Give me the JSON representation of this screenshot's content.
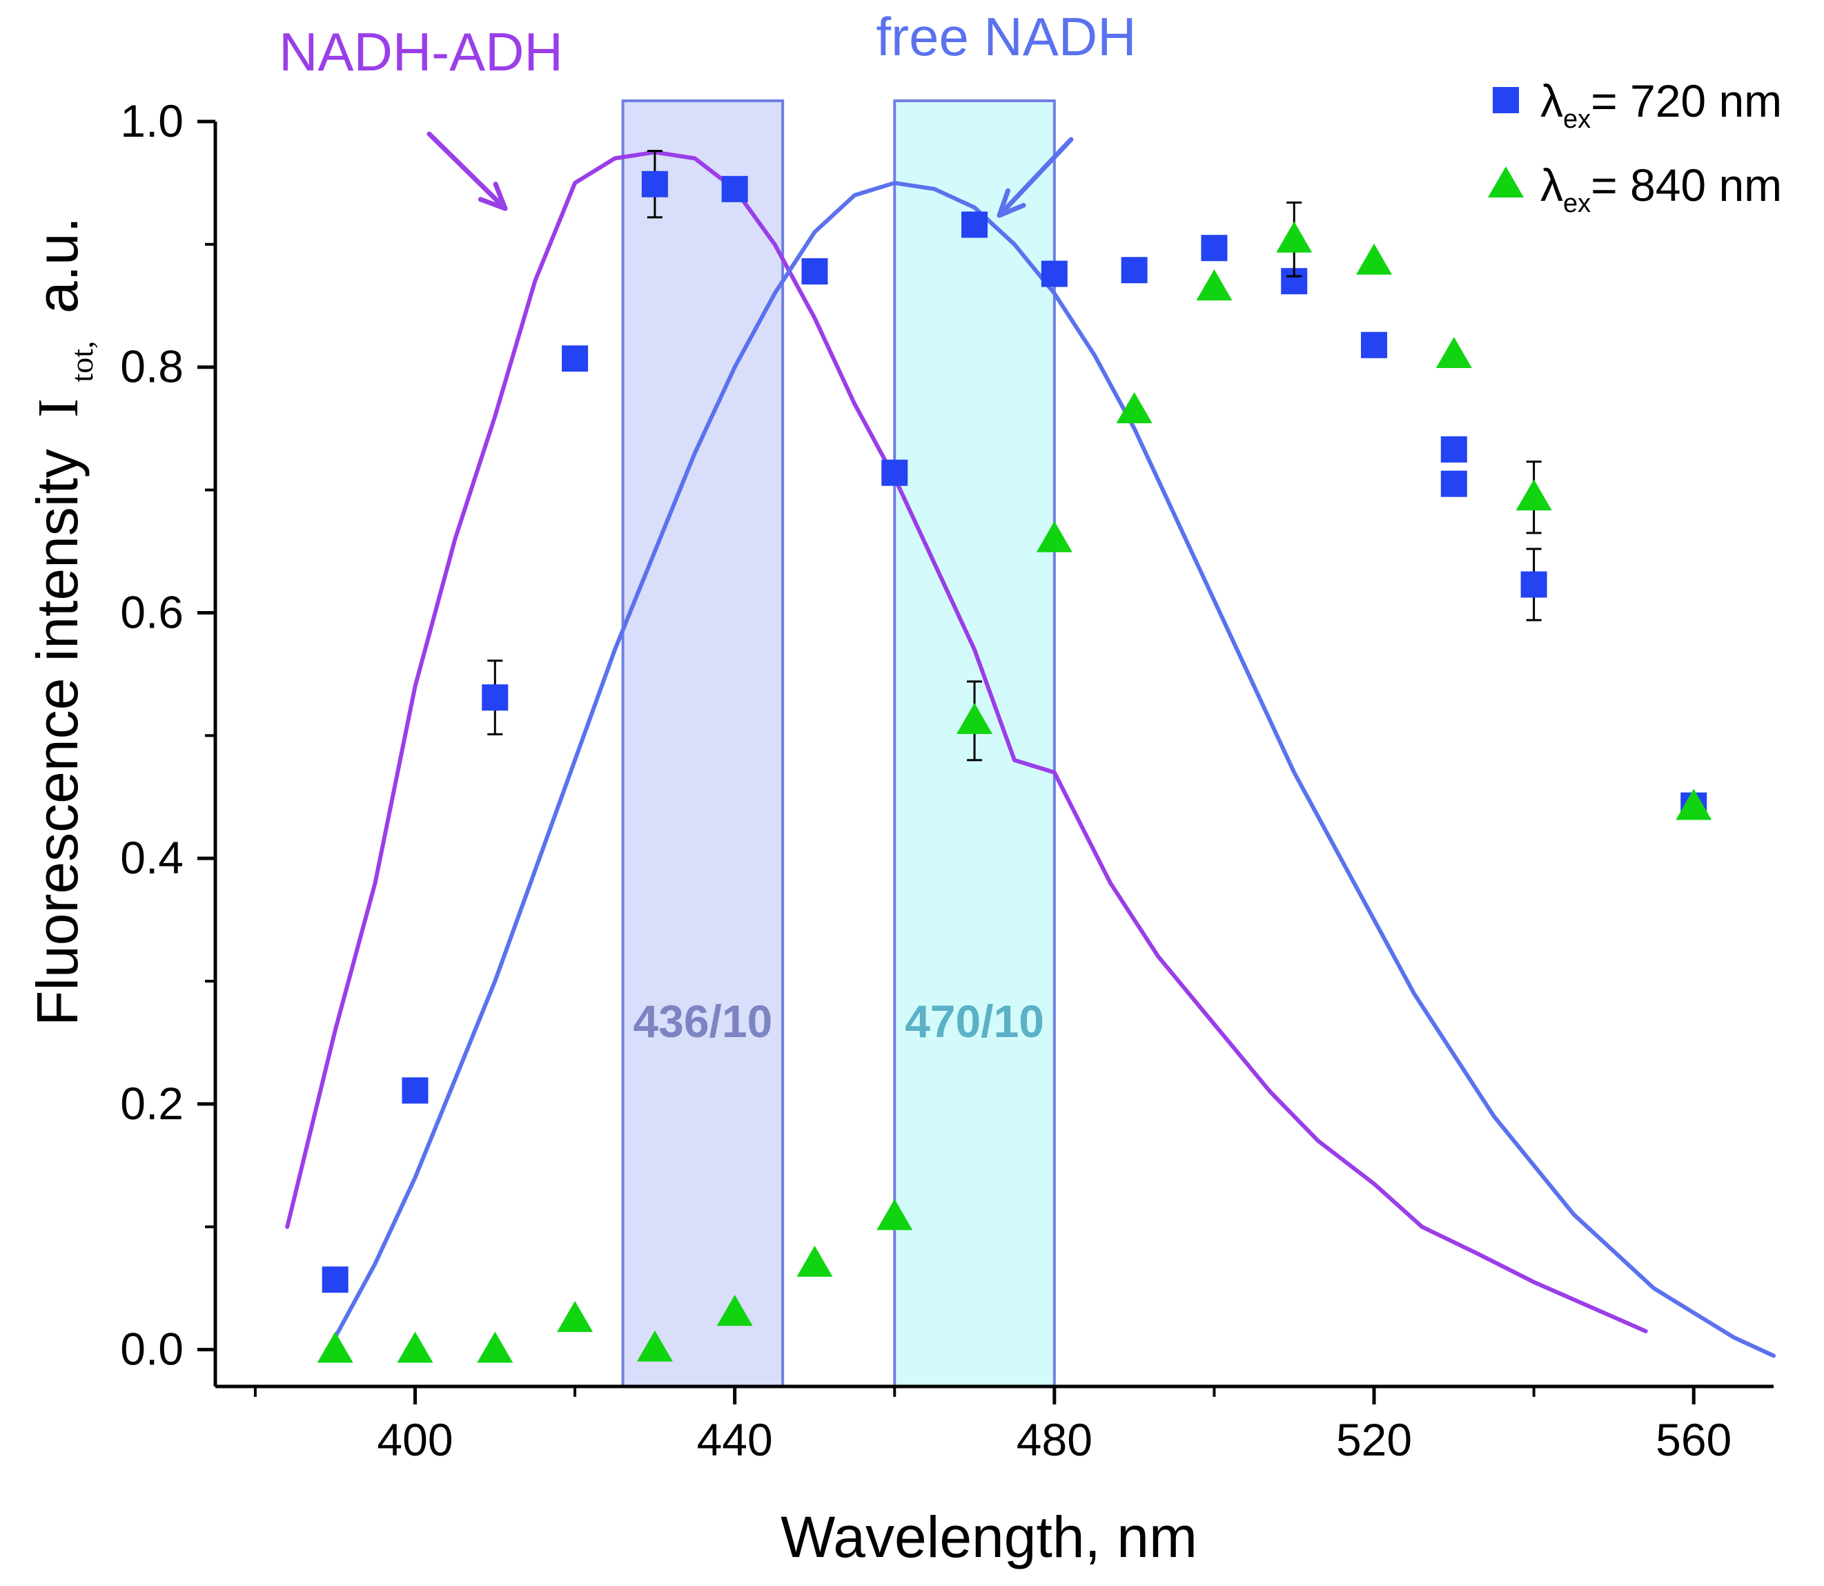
{
  "chart_data": {
    "type": "scatter",
    "xlabel": "Wavelength, nm",
    "ylabel": {
      "main": "Fluorescence intensity",
      "symbol": "I",
      "subscript": "tot,",
      "unit": "a.u."
    },
    "xlim": [
      375,
      570
    ],
    "ylim": [
      -0.03,
      1.0
    ],
    "xticks": [
      {
        "value": 400,
        "label": "400"
      },
      {
        "value": 440,
        "label": "440"
      },
      {
        "value": 480,
        "label": "480"
      },
      {
        "value": 520,
        "label": "520"
      },
      {
        "value": 560,
        "label": "560"
      }
    ],
    "xminor": [
      380,
      420,
      460,
      500,
      540
    ],
    "yticks": [
      {
        "value": 0.0,
        "label": "0.0"
      },
      {
        "value": 0.2,
        "label": "0.2"
      },
      {
        "value": 0.4,
        "label": "0.4"
      },
      {
        "value": 0.6,
        "label": "0.6"
      },
      {
        "value": 0.8,
        "label": "0.8"
      },
      {
        "value": 1.0,
        "label": "1.0"
      }
    ],
    "yminor": [
      0.1,
      0.3,
      0.5,
      0.7,
      0.9
    ],
    "bands": [
      {
        "x0": 426,
        "x1": 446,
        "label": "436/10",
        "fill": "#d9defa",
        "stroke": "#6f7fe0",
        "text_color": "#7d84c2"
      },
      {
        "x0": 460,
        "x1": 480,
        "label": "470/10",
        "fill": "#d4fbfb",
        "stroke": "#6f7fe0",
        "text_color": "#5bb1c6"
      }
    ],
    "curves": [
      {
        "label": "NADH-ADH",
        "color": "#9a3ee8",
        "x": [
          384,
          390,
          395,
          400,
          405,
          410,
          415,
          420,
          425,
          430,
          435,
          440,
          445,
          450,
          455,
          460,
          465,
          470,
          475,
          480,
          487,
          493,
          500,
          507,
          513,
          520,
          526,
          533,
          540,
          547,
          554
        ],
        "y": [
          0.1,
          0.26,
          0.38,
          0.54,
          0.66,
          0.76,
          0.87,
          0.95,
          0.97,
          0.975,
          0.97,
          0.945,
          0.9,
          0.84,
          0.77,
          0.71,
          0.64,
          0.57,
          0.48,
          0.47,
          0.38,
          0.32,
          0.265,
          0.21,
          0.17,
          0.135,
          0.1,
          0.078,
          0.055,
          0.035,
          0.015
        ]
      },
      {
        "label": "free NADH",
        "color": "#5a72ee",
        "x": [
          390,
          395,
          400,
          405,
          410,
          415,
          420,
          425,
          430,
          435,
          440,
          445,
          450,
          455,
          460,
          465,
          470,
          475,
          480,
          485,
          490,
          495,
          500,
          505,
          510,
          515,
          520,
          525,
          530,
          535,
          540,
          545,
          550,
          555,
          560,
          565,
          570
        ],
        "y": [
          0.01,
          0.07,
          0.14,
          0.22,
          0.3,
          0.39,
          0.48,
          0.57,
          0.65,
          0.73,
          0.8,
          0.86,
          0.91,
          0.94,
          0.95,
          0.945,
          0.93,
          0.9,
          0.86,
          0.81,
          0.75,
          0.68,
          0.61,
          0.54,
          0.47,
          0.41,
          0.35,
          0.29,
          0.24,
          0.19,
          0.15,
          0.11,
          0.08,
          0.05,
          0.03,
          0.01,
          -0.005
        ]
      }
    ],
    "series": [
      {
        "name": "λex= 720 nm",
        "legend_symbol": "λ",
        "legend_sub": "ex",
        "legend_rest": "= 720 nm",
        "marker": "square",
        "color": "#2443f2",
        "points": [
          {
            "x": 390,
            "y": 0.057
          },
          {
            "x": 400,
            "y": 0.211
          },
          {
            "x": 410,
            "y": 0.531,
            "err": 0.03
          },
          {
            "x": 420,
            "y": 0.807
          },
          {
            "x": 430,
            "y": 0.949,
            "err": 0.027
          },
          {
            "x": 440,
            "y": 0.945
          },
          {
            "x": 450,
            "y": 0.878
          },
          {
            "x": 460,
            "y": 0.714
          },
          {
            "x": 470,
            "y": 0.916
          },
          {
            "x": 480,
            "y": 0.876
          },
          {
            "x": 490,
            "y": 0.879
          },
          {
            "x": 500,
            "y": 0.897
          },
          {
            "x": 510,
            "y": 0.87
          },
          {
            "x": 520,
            "y": 0.818
          },
          {
            "x": 530,
            "y": 0.733
          },
          {
            "x": 530,
            "y": 0.705
          },
          {
            "x": 540,
            "y": 0.623,
            "err": 0.029
          },
          {
            "x": 560,
            "y": 0.443
          }
        ]
      },
      {
        "name": "λex= 840 nm",
        "legend_symbol": "λ",
        "legend_sub": "ex",
        "legend_rest": "= 840 nm",
        "marker": "triangle",
        "color": "#10d410",
        "points": [
          {
            "x": 390,
            "y": 0.0
          },
          {
            "x": 400,
            "y": 0.0
          },
          {
            "x": 410,
            "y": 0.0
          },
          {
            "x": 420,
            "y": 0.025
          },
          {
            "x": 430,
            "y": 0.001
          },
          {
            "x": 440,
            "y": 0.03
          },
          {
            "x": 450,
            "y": 0.07
          },
          {
            "x": 460,
            "y": 0.108
          },
          {
            "x": 470,
            "y": 0.512,
            "err": 0.032
          },
          {
            "x": 480,
            "y": 0.66
          },
          {
            "x": 490,
            "y": 0.765
          },
          {
            "x": 500,
            "y": 0.865
          },
          {
            "x": 510,
            "y": 0.904,
            "err": 0.03
          },
          {
            "x": 520,
            "y": 0.886
          },
          {
            "x": 530,
            "y": 0.81
          },
          {
            "x": 540,
            "y": 0.694,
            "err": 0.029
          },
          {
            "x": 560,
            "y": 0.442
          }
        ]
      }
    ],
    "legend": {
      "placement": "top-right"
    }
  }
}
